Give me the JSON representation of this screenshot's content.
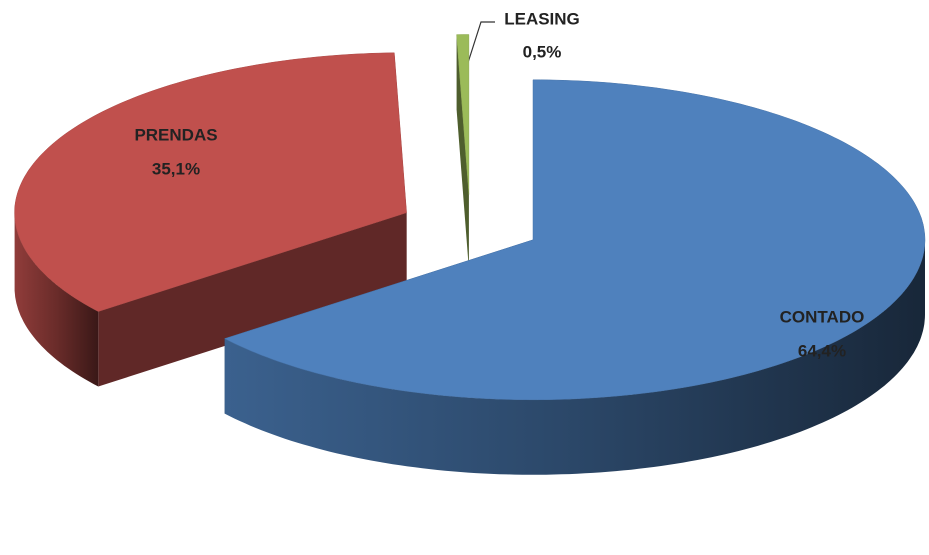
{
  "chart_data": {
    "type": "pie3d",
    "categories": [
      "CONTADO",
      "PRENDAS",
      "LEASING"
    ],
    "values": [
      64.4,
      35.1,
      0.5
    ],
    "value_labels": [
      "64,4%",
      "35,1%",
      "0,5%"
    ],
    "colors": [
      "#4f81bd",
      "#c0504d",
      "#9bbb59"
    ]
  }
}
